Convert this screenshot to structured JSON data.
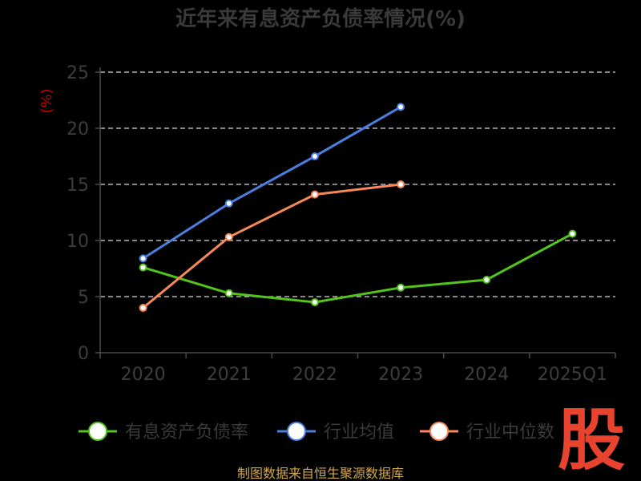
{
  "chart_data": {
    "type": "line",
    "title": "近年来有息资产负债率情况(%)",
    "ylabel": "(%)",
    "categories": [
      "2020",
      "2021",
      "2022",
      "2023",
      "2024",
      "2025Q1"
    ],
    "ylim": [
      0,
      25
    ],
    "yticks": [
      0,
      5,
      10,
      15,
      20,
      25
    ],
    "grid": true,
    "legend_position": "bottom",
    "series": [
      {
        "name": "有息资产负债率",
        "color": "#52c41a",
        "values": [
          7.6,
          5.3,
          4.5,
          5.8,
          6.5,
          10.6
        ]
      },
      {
        "name": "行业均值",
        "color": "#4a7fe0",
        "values": [
          8.4,
          13.3,
          17.5,
          21.9,
          null,
          null
        ]
      },
      {
        "name": "行业中位数",
        "color": "#f6895a",
        "values": [
          4.0,
          10.3,
          14.1,
          15.0,
          null,
          null
        ]
      }
    ]
  },
  "source": "制图数据来自恒生聚源数据库",
  "watermark": "股"
}
